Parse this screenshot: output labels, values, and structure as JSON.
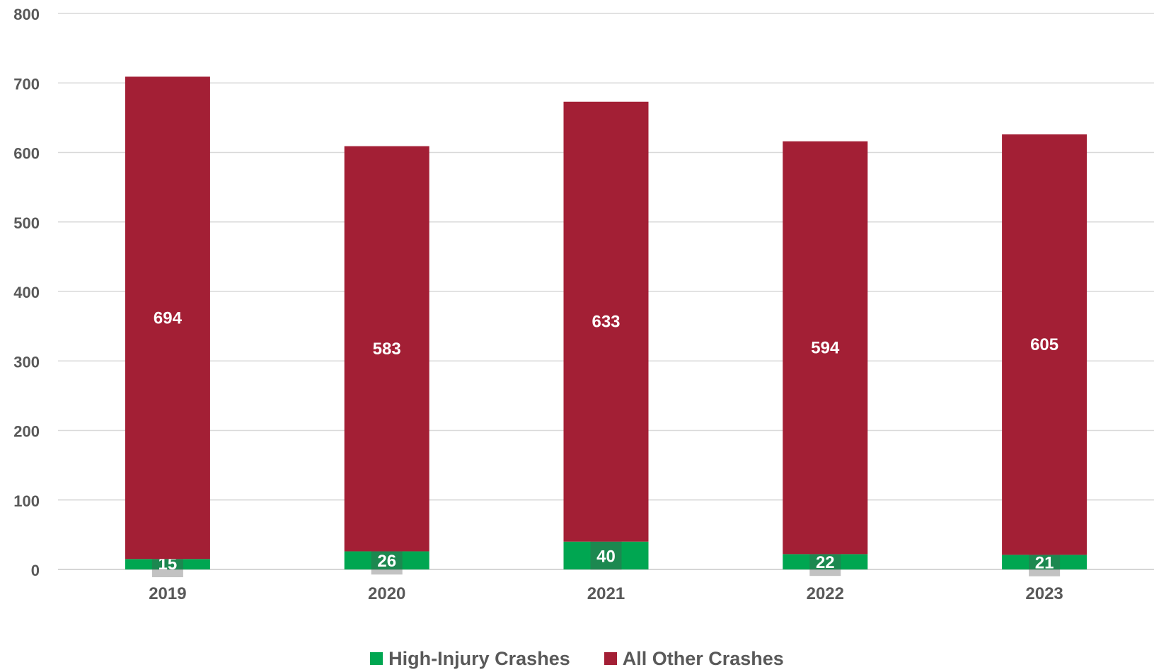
{
  "chart_data": {
    "type": "bar",
    "stacked": true,
    "categories": [
      "2019",
      "2020",
      "2021",
      "2022",
      "2023"
    ],
    "series": [
      {
        "name": "High-Injury Crashes",
        "color": "#00A651",
        "values": [
          15,
          26,
          40,
          22,
          21
        ]
      },
      {
        "name": "All Other Crashes",
        "color": "#A31F35",
        "values": [
          694,
          583,
          633,
          594,
          605
        ]
      }
    ],
    "ylim": [
      0,
      800
    ],
    "yticks": [
      0,
      100,
      200,
      300,
      400,
      500,
      600,
      700,
      800
    ],
    "grid": true,
    "legend_position": "bottom",
    "title": "",
    "xlabel": "",
    "ylabel": ""
  }
}
